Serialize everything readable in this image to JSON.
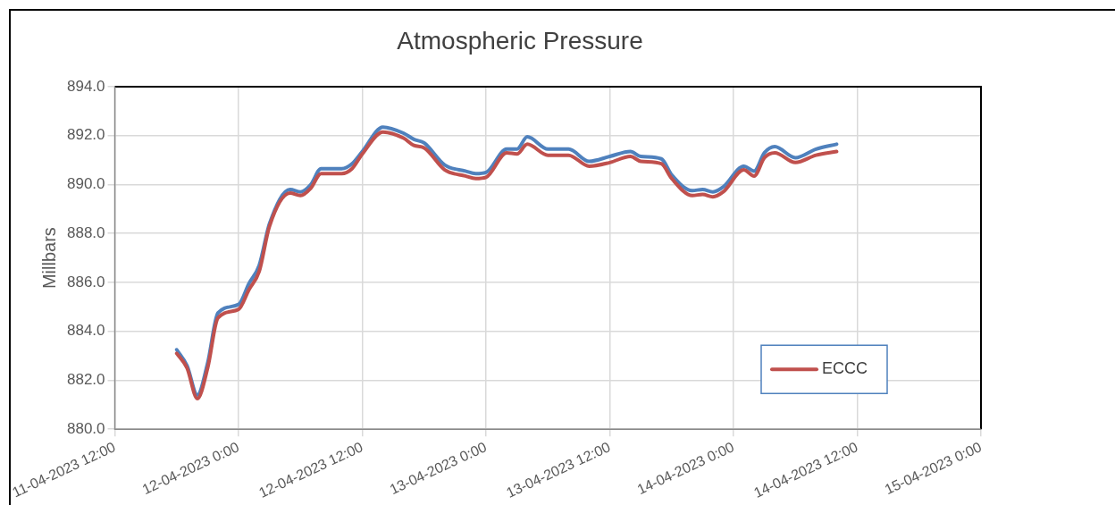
{
  "chart_data": {
    "type": "line",
    "title": "Atmospheric Pressure",
    "ylabel": "Millbars",
    "x": [
      "2023-04-11T18:00",
      "2023-04-11T19:00",
      "2023-04-11T20:00",
      "2023-04-11T21:00",
      "2023-04-11T22:00",
      "2023-04-12T00:00",
      "2023-04-12T01:00",
      "2023-04-12T02:00",
      "2023-04-12T03:00",
      "2023-04-12T05:00",
      "2023-04-12T06:00",
      "2023-04-12T07:00",
      "2023-04-12T08:00",
      "2023-04-12T10:00",
      "2023-04-12T11:00",
      "2023-04-12T12:00",
      "2023-04-12T14:00",
      "2023-04-12T16:00",
      "2023-04-12T17:00",
      "2023-04-12T18:00",
      "2023-04-12T20:00",
      "2023-04-12T22:00",
      "2023-04-12T23:00",
      "2023-04-13T00:00",
      "2023-04-13T02:00",
      "2023-04-13T03:00",
      "2023-04-13T04:00",
      "2023-04-13T06:00",
      "2023-04-13T08:00",
      "2023-04-13T10:00",
      "2023-04-13T12:00",
      "2023-04-13T14:00",
      "2023-04-13T15:00",
      "2023-04-13T17:00",
      "2023-04-13T18:00",
      "2023-04-13T20:00",
      "2023-04-13T21:00",
      "2023-04-13T22:00",
      "2023-04-13T23:00",
      "2023-04-14T01:00",
      "2023-04-14T02:00",
      "2023-04-14T03:00",
      "2023-04-14T04:00",
      "2023-04-14T06:00",
      "2023-04-14T08:00",
      "2023-04-14T10:00"
    ],
    "series": [
      {
        "name": "ECCC",
        "color": "#c0504d",
        "values": [
          883.1,
          882.5,
          881.25,
          882.5,
          884.55,
          884.9,
          885.7,
          886.45,
          888.3,
          889.65,
          889.55,
          889.85,
          890.45,
          890.45,
          890.65,
          891.25,
          892.15,
          891.9,
          891.6,
          891.5,
          890.6,
          890.35,
          890.25,
          890.3,
          891.3,
          891.25,
          891.65,
          891.2,
          891.2,
          890.75,
          890.9,
          891.15,
          890.95,
          890.85,
          890.25,
          889.55,
          889.6,
          889.5,
          889.7,
          890.6,
          890.35,
          891.1,
          891.3,
          890.9,
          891.2,
          891.35
        ]
      },
      {
        "color": "#4f81bd",
        "values": [
          883.25,
          882.6,
          881.4,
          882.7,
          884.75,
          885.1,
          885.95,
          886.7,
          888.4,
          889.8,
          889.7,
          890.0,
          890.65,
          890.65,
          890.85,
          891.35,
          892.35,
          892.1,
          891.85,
          891.7,
          890.8,
          890.55,
          890.45,
          890.5,
          891.45,
          891.45,
          891.95,
          891.45,
          891.45,
          890.95,
          891.15,
          891.35,
          891.15,
          891.05,
          890.4,
          889.75,
          889.8,
          889.7,
          889.9,
          890.75,
          890.55,
          891.3,
          891.55,
          891.1,
          891.45,
          891.65
        ]
      }
    ],
    "xlim": [
      "2023-04-11T12:00",
      "2023-04-15T00:00"
    ],
    "xticks": [
      {
        "value": "2023-04-11T12:00",
        "label": "11-04-2023 12:00"
      },
      {
        "value": "2023-04-12T00:00",
        "label": "12-04-2023 0:00"
      },
      {
        "value": "2023-04-12T12:00",
        "label": "12-04-2023 12:00"
      },
      {
        "value": "2023-04-13T00:00",
        "label": "13-04-2023 0:00"
      },
      {
        "value": "2023-04-13T12:00",
        "label": "13-04-2023 12:00"
      },
      {
        "value": "2023-04-14T00:00",
        "label": "14-04-2023 0:00"
      },
      {
        "value": "2023-04-14T12:00",
        "label": "14-04-2023 12:00"
      },
      {
        "value": "2023-04-15T00:00",
        "label": "15-04-2023 0:00"
      }
    ],
    "ylim": [
      880,
      894
    ],
    "yticks": [
      {
        "value": 880,
        "label": "880.0"
      },
      {
        "value": 882,
        "label": "882.0"
      },
      {
        "value": 884,
        "label": "884.0"
      },
      {
        "value": 886,
        "label": "886.0"
      },
      {
        "value": 888,
        "label": "888.0"
      },
      {
        "value": 890,
        "label": "890.0"
      },
      {
        "value": 892,
        "label": "892.0"
      },
      {
        "value": 894,
        "label": "894.0"
      }
    ],
    "grid": true,
    "legend": "bottom right",
    "marker": "none",
    "line_style": "solid"
  }
}
